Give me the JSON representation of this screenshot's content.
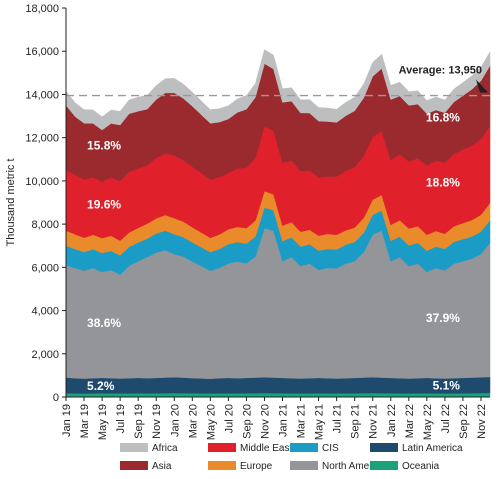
{
  "chart_data": {
    "type": "area",
    "stacked": true,
    "ylabel": "Thousand metric t",
    "ylim": [
      0,
      18000
    ],
    "yticks": [
      "0",
      "2,000",
      "4,000",
      "6,000",
      "8,000",
      "10,000",
      "12,000",
      "14,000",
      "16,000",
      "18,000"
    ],
    "x_tick_labels": [
      "Jan 19",
      "Mar 19",
      "May 19",
      "Jul 19",
      "Sep 19",
      "Nov 19",
      "Jan 20",
      "Mar 20",
      "May 20",
      "Jul 20",
      "Sep 20",
      "Nov 20",
      "Jan 21",
      "Mar 21",
      "May 21",
      "Jul 21",
      "Sep 21",
      "Nov 21",
      "Jan 22",
      "Mar 22",
      "May 22",
      "Jul 22",
      "Sep 22",
      "Nov 22"
    ],
    "categories": [
      "Jan 19",
      "Feb 19",
      "Mar 19",
      "Apr 19",
      "May 19",
      "Jun 19",
      "Jul 19",
      "Aug 19",
      "Sep 19",
      "Oct 19",
      "Nov 19",
      "Dec 19",
      "Jan 20",
      "Feb 20",
      "Mar 20",
      "Apr 20",
      "May 20",
      "Jun 20",
      "Jul 20",
      "Aug 20",
      "Sep 20",
      "Oct 20",
      "Nov 20",
      "Dec 20",
      "Jan 21",
      "Feb 21",
      "Mar 21",
      "Apr 21",
      "May 21",
      "Jun 21",
      "Jul 21",
      "Aug 21",
      "Sep 21",
      "Oct 21",
      "Nov 21",
      "Dec 21",
      "Jan 22",
      "Feb 22",
      "Mar 22",
      "Apr 22",
      "May 22",
      "Jun 22",
      "Jul 22",
      "Aug 22",
      "Sep 22",
      "Oct 22",
      "Nov 22",
      "Dec 22"
    ],
    "series": [
      {
        "name": "Oceania",
        "color": "#1aa37a",
        "values": [
          180,
          170,
          160,
          170,
          175,
          170,
          165,
          170,
          175,
          170,
          175,
          180,
          185,
          180,
          175,
          170,
          165,
          170,
          175,
          170,
          175,
          180,
          185,
          180,
          175,
          170,
          165,
          170,
          175,
          170,
          165,
          170,
          175,
          180,
          185,
          180,
          175,
          170,
          165,
          170,
          175,
          170,
          165,
          170,
          175,
          180,
          185,
          190
        ]
      },
      {
        "name": "Latin America",
        "color": "#1e4a6e",
        "values": [
          720,
          700,
          690,
          700,
          710,
          700,
          690,
          700,
          710,
          700,
          710,
          720,
          730,
          720,
          700,
          690,
          680,
          700,
          710,
          700,
          710,
          720,
          730,
          720,
          710,
          700,
          690,
          700,
          710,
          700,
          690,
          700,
          710,
          720,
          730,
          720,
          710,
          700,
          690,
          700,
          710,
          700,
          690,
          700,
          710,
          720,
          730,
          740
        ]
      },
      {
        "name": "North America",
        "color": "#939598",
        "values": [
          5200,
          5100,
          5000,
          5100,
          4900,
          5000,
          4800,
          5200,
          5400,
          5600,
          5800,
          5900,
          5700,
          5600,
          5400,
          5200,
          5000,
          5100,
          5300,
          5400,
          5300,
          5600,
          6900,
          6800,
          5400,
          5600,
          5200,
          5300,
          5000,
          5100,
          5100,
          5300,
          5400,
          5800,
          6600,
          6800,
          5400,
          5600,
          5200,
          5300,
          4900,
          5100,
          5000,
          5300,
          5400,
          5500,
          5700,
          6200
        ]
      },
      {
        "name": "CIS",
        "color": "#1b9cc6",
        "values": [
          900,
          880,
          860,
          870,
          880,
          890,
          900,
          880,
          870,
          860,
          880,
          900,
          920,
          900,
          880,
          870,
          860,
          880,
          890,
          900,
          910,
          930,
          950,
          940,
          930,
          920,
          910,
          900,
          890,
          880,
          870,
          880,
          890,
          900,
          920,
          930,
          940,
          950,
          960,
          970,
          980,
          990,
          1000,
          1010,
          1020,
          1030,
          1040,
          1050
        ]
      },
      {
        "name": "Europe",
        "color": "#e98b2a",
        "values": [
          700,
          680,
          660,
          670,
          690,
          700,
          680,
          660,
          670,
          690,
          700,
          720,
          740,
          720,
          700,
          680,
          660,
          670,
          690,
          700,
          720,
          740,
          760,
          740,
          720,
          700,
          680,
          670,
          690,
          700,
          680,
          660,
          670,
          690,
          700,
          720,
          740,
          760,
          780,
          760,
          740,
          720,
          700,
          720,
          740,
          760,
          780,
          800
        ]
      },
      {
        "name": "Middle East",
        "color": "#e0202a",
        "values": [
          2800,
          2750,
          2700,
          2650,
          2600,
          2700,
          2750,
          2800,
          2750,
          2700,
          2800,
          2850,
          2900,
          2850,
          2800,
          2750,
          2700,
          2650,
          2600,
          2700,
          2800,
          2900,
          3000,
          2950,
          2900,
          2850,
          2800,
          2750,
          2700,
          2650,
          2700,
          2750,
          2800,
          2850,
          2900,
          2950,
          3000,
          3050,
          3100,
          3150,
          3200,
          3250,
          3300,
          3350,
          3400,
          3450,
          3500,
          3550
        ]
      },
      {
        "name": "Asia",
        "color": "#9b2a2f",
        "values": [
          3000,
          2700,
          2600,
          2500,
          2400,
          2500,
          2600,
          2700,
          2650,
          2600,
          2700,
          2800,
          2900,
          2850,
          2800,
          2700,
          2600,
          2550,
          2500,
          2600,
          2700,
          2800,
          2900,
          2850,
          2800,
          2750,
          2700,
          2650,
          2600,
          2550,
          2500,
          2550,
          2600,
          2700,
          2800,
          2900,
          2800,
          2700,
          2600,
          2500,
          2400,
          2350,
          2300,
          2400,
          2500,
          2600,
          2700,
          2800
        ]
      },
      {
        "name": "Africa",
        "color": "#bcbec0",
        "values": [
          650,
          640,
          630,
          620,
          610,
          620,
          630,
          640,
          650,
          640,
          650,
          660,
          670,
          660,
          650,
          640,
          630,
          620,
          610,
          620,
          630,
          640,
          650,
          640,
          630,
          620,
          610,
          620,
          630,
          620,
          610,
          620,
          630,
          640,
          650,
          660,
          650,
          640,
          630,
          620,
          610,
          600,
          590,
          600,
          610,
          620,
          630,
          640
        ]
      }
    ],
    "average": {
      "label": "Average: 13,950",
      "value": 13950
    },
    "annotations": [
      {
        "text": "15.8%",
        "series": "Asia",
        "position": "left"
      },
      {
        "text": "16.8%",
        "series": "Asia",
        "position": "right"
      },
      {
        "text": "19.6%",
        "series": "Middle East",
        "position": "left"
      },
      {
        "text": "18.8%",
        "series": "Middle East",
        "position": "right"
      },
      {
        "text": "38.6%",
        "series": "North America",
        "position": "left"
      },
      {
        "text": "37.9%",
        "series": "North America",
        "position": "right"
      },
      {
        "text": "5.2%",
        "series": "Latin America",
        "position": "left"
      },
      {
        "text": "5.1%",
        "series": "Latin America",
        "position": "right"
      }
    ],
    "legend": {
      "placement": "bottom",
      "items": [
        {
          "name": "Africa",
          "color": "#bcbec0"
        },
        {
          "name": "Middle East",
          "color": "#e0202a"
        },
        {
          "name": "CIS",
          "color": "#1b9cc6"
        },
        {
          "name": "Latin America",
          "color": "#1e4a6e"
        },
        {
          "name": "Asia",
          "color": "#9b2a2f"
        },
        {
          "name": "Europe",
          "color": "#e98b2a"
        },
        {
          "name": "North America",
          "color": "#939598"
        },
        {
          "name": "Oceania",
          "color": "#1aa37a"
        }
      ]
    },
    "grid": false
  }
}
